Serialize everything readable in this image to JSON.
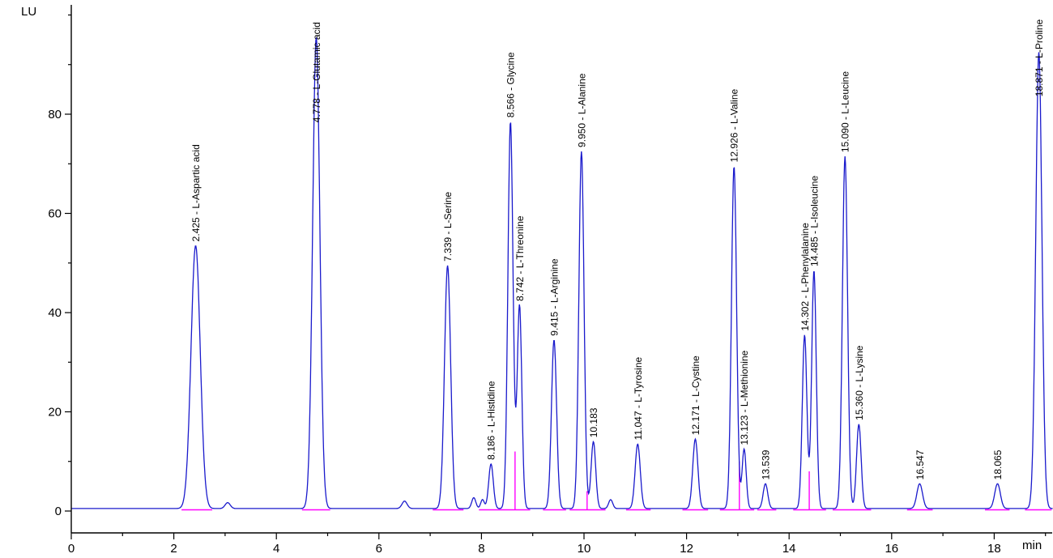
{
  "chart_data": {
    "type": "line",
    "subtype": "chromatogram",
    "title": "",
    "xlabel": "min",
    "ylabel": "LU",
    "xlim": [
      0,
      19.2
    ],
    "ylim": [
      0,
      100
    ],
    "x_ticks_major": [
      0,
      2,
      4,
      6,
      8,
      10,
      12,
      14,
      16,
      18
    ],
    "x_tick_minor_step": 1,
    "y_ticks_major": [
      0,
      20,
      40,
      60,
      80
    ],
    "y_tick_minor_step": 10,
    "grid": false,
    "trace_color": "#1a1acc",
    "marker_color": "#ff00ff",
    "axis_color": "#000000",
    "baseline_level": 0.5,
    "peaks": [
      {
        "rt": 2.425,
        "name": "L-Aspartic acid",
        "label": "2.425 - L-Aspartic acid",
        "height": 53,
        "sigma": 0.09
      },
      {
        "rt": 4.778,
        "name": "L-Glutamic acid",
        "label": "4.778 - L-Glutamic acid",
        "height": 95,
        "sigma": 0.07
      },
      {
        "rt": 7.339,
        "name": "L-Serine",
        "label": "7.339 - L-Serine",
        "height": 49,
        "sigma": 0.06
      },
      {
        "rt": 8.186,
        "name": "L-Histidine",
        "label": "8.186 - L-Histidine",
        "height": 9,
        "sigma": 0.045
      },
      {
        "rt": 8.566,
        "name": "Glycine",
        "label": "8.566 - Glycine",
        "height": 78,
        "sigma": 0.05
      },
      {
        "rt": 8.742,
        "name": "L-Threonine",
        "label": "8.742 - L-Threonine",
        "height": 41,
        "sigma": 0.045
      },
      {
        "rt": 9.415,
        "name": "L-Arginine",
        "label": "9.415 - L-Arginine",
        "height": 34,
        "sigma": 0.05
      },
      {
        "rt": 9.95,
        "name": "L-Alanine",
        "label": "9.950 - L-Alanine",
        "height": 72,
        "sigma": 0.05
      },
      {
        "rt": 10.183,
        "name": "",
        "label": "10.183",
        "height": 13.5,
        "sigma": 0.045
      },
      {
        "rt": 11.047,
        "name": "L-Tyrosine",
        "label": "11.047 - L-Tyrosine",
        "height": 13,
        "sigma": 0.05
      },
      {
        "rt": 12.171,
        "name": "L-Cystine",
        "label": "12.171 - L-Cystine",
        "height": 14,
        "sigma": 0.05
      },
      {
        "rt": 12.926,
        "name": "L-Valine",
        "label": "12.926 - L-Valine",
        "height": 69,
        "sigma": 0.05
      },
      {
        "rt": 13.123,
        "name": "L-Methionine",
        "label": "13.123 - L-Methionine",
        "height": 12,
        "sigma": 0.04
      },
      {
        "rt": 13.539,
        "name": "",
        "label": "13.539",
        "height": 5,
        "sigma": 0.045
      },
      {
        "rt": 14.302,
        "name": "L-Phenylalanine",
        "label": "14.302 - L-Phenylalanine",
        "height": 35,
        "sigma": 0.045
      },
      {
        "rt": 14.485,
        "name": "L-Isoleucine",
        "label": "14.485 - L-Isoleucine",
        "height": 48,
        "sigma": 0.045
      },
      {
        "rt": 15.09,
        "name": "L-Leucine",
        "label": "15.090 - L-Leucine",
        "height": 71,
        "sigma": 0.05
      },
      {
        "rt": 15.36,
        "name": "L-Lysine",
        "label": "15.360 - L-Lysine",
        "height": 17,
        "sigma": 0.045
      },
      {
        "rt": 16.547,
        "name": "",
        "label": "16.547",
        "height": 5,
        "sigma": 0.055
      },
      {
        "rt": 18.065,
        "name": "",
        "label": "18.065",
        "height": 5,
        "sigma": 0.055
      },
      {
        "rt": 18.871,
        "name": "L-Proline",
        "label": "18.871 - L-Proline",
        "height": 92,
        "sigma": 0.06
      }
    ],
    "minor_peaks": [
      {
        "rt": 3.05,
        "height": 1.2,
        "sigma": 0.05
      },
      {
        "rt": 6.5,
        "height": 1.5,
        "sigma": 0.05
      },
      {
        "rt": 7.85,
        "height": 2.2,
        "sigma": 0.04
      },
      {
        "rt": 8.02,
        "height": 1.8,
        "sigma": 0.035
      },
      {
        "rt": 10.52,
        "height": 1.8,
        "sigma": 0.04
      }
    ],
    "integration_baseline_segments": [
      [
        2.15,
        2.75
      ],
      [
        4.5,
        5.05
      ],
      [
        7.05,
        7.65
      ],
      [
        7.95,
        8.95
      ],
      [
        9.2,
        9.65
      ],
      [
        9.72,
        10.42
      ],
      [
        10.82,
        11.3
      ],
      [
        11.92,
        12.42
      ],
      [
        12.65,
        13.32
      ],
      [
        13.38,
        13.75
      ],
      [
        14.08,
        14.72
      ],
      [
        14.85,
        15.6
      ],
      [
        16.3,
        16.8
      ],
      [
        17.82,
        18.3
      ],
      [
        18.6,
        19.12
      ]
    ],
    "integration_split_markers": [
      {
        "rt": 8.655,
        "height": 12
      },
      {
        "rt": 10.06,
        "height": 4
      },
      {
        "rt": 13.03,
        "height": 10
      },
      {
        "rt": 14.393,
        "height": 8
      }
    ]
  }
}
